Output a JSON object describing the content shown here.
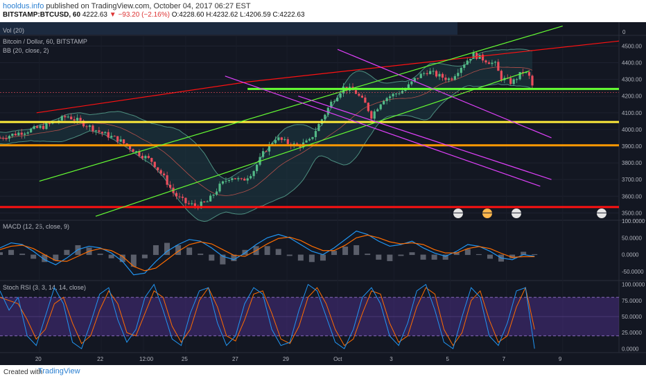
{
  "header": {
    "author": "hooldus.info",
    "published_text": "published on TradingView.com, October 04, 2017 06:27 EST",
    "symbol": "BITSTAMP:BTCUSD, 60",
    "last": "4222.63",
    "change": "▼ −93.20 (−2.16%)",
    "ohlc": "O:4228.60 H:4232.62 L:4206.59 C:4222.63"
  },
  "panes": {
    "vol_label": "Vol (20)",
    "vol_right": "0",
    "price_label": "Bitcoin / Dollar, 60, BITSTAMP",
    "bb_label": "BB (20, close, 2)",
    "macd_label": "MACD (12, 26, close, 9)",
    "stoch_label": "Stoch RSI (3, 3, 14, 14, close)"
  },
  "footer": {
    "created_with": "Created with",
    "brand": "TradingView"
  },
  "colors": {
    "background": "#131722",
    "up": "#53b987",
    "down": "#eb4d5c",
    "bb": "#4d8f80",
    "macd": "#2196f3",
    "signal": "#ff6d00",
    "stoch_k": "#2196f3",
    "stoch_d": "#ff6d00",
    "stoch_band": "#673ab7",
    "yellow": "#ffeb3b",
    "orange": "#ff9800",
    "red": "#ff1111",
    "bright_green": "#66ff33",
    "magenta": "#e040fb"
  },
  "chart_data": [
    {
      "type": "candlestick",
      "title": "Bitcoin / Dollar, 60, BITSTAMP",
      "x_ticks": [
        "20",
        "22",
        "12:00",
        "25",
        "27",
        "29",
        "Oct",
        "3",
        "5",
        "7",
        "9"
      ],
      "y_ticks": [
        "4500.00",
        "4400.00",
        "4300.00",
        "4200.00",
        "4100.00",
        "4000.00",
        "3900.00",
        "3800.00",
        "3700.00",
        "3600.00",
        "3500.00"
      ],
      "ylim": [
        3460,
        4560
      ],
      "price_path": [
        [
          0,
          3950
        ],
        [
          8,
          4020
        ],
        [
          12,
          4080
        ],
        [
          14,
          4050
        ],
        [
          18,
          3980
        ],
        [
          21,
          3940
        ],
        [
          24,
          3870
        ],
        [
          27,
          3810
        ],
        [
          29,
          3720
        ],
        [
          31,
          3610
        ],
        [
          33,
          3560
        ],
        [
          35,
          3540
        ],
        [
          37,
          3570
        ],
        [
          39,
          3660
        ],
        [
          41,
          3720
        ],
        [
          43,
          3690
        ],
        [
          45,
          3750
        ],
        [
          47,
          3870
        ],
        [
          49,
          3950
        ],
        [
          51,
          3920
        ],
        [
          53,
          3900
        ],
        [
          55,
          3930
        ],
        [
          57,
          4050
        ],
        [
          59,
          4170
        ],
        [
          61,
          4250
        ],
        [
          63,
          4230
        ],
        [
          65,
          4150
        ],
        [
          66,
          4080
        ],
        [
          68,
          4180
        ],
        [
          70,
          4210
        ],
        [
          72,
          4240
        ],
        [
          74,
          4310
        ],
        [
          76,
          4350
        ],
        [
          78,
          4320
        ],
        [
          80,
          4300
        ],
        [
          82,
          4380
        ],
        [
          84,
          4450
        ],
        [
          86,
          4420
        ],
        [
          88,
          4390
        ],
        [
          89,
          4310
        ],
        [
          91,
          4280
        ],
        [
          93,
          4350
        ],
        [
          94,
          4320
        ],
        [
          95,
          4222.63
        ]
      ],
      "last_price": "4222.63",
      "horizontal_levels": [
        {
          "price": 4243,
          "color": "bright_green"
        },
        {
          "price": 4045,
          "color": "yellow"
        },
        {
          "price": 3905,
          "color": "orange"
        },
        {
          "price": 3535,
          "color": "red"
        }
      ],
      "trend_lines": [
        {
          "from": [
            6.5,
            4100
          ],
          "to": [
            44,
            4285
          ],
          "color": "red"
        },
        {
          "from": [
            44,
            4285
          ],
          "to": [
            110,
            4530
          ],
          "color": "red"
        },
        {
          "from": [
            17,
            3480
          ],
          "to": [
            94,
            4350
          ],
          "color": "bright_green"
        },
        {
          "from": [
            7,
            3690
          ],
          "to": [
            100,
            4620
          ],
          "color": "bright_green"
        },
        {
          "from": [
            40,
            4320
          ],
          "to": [
            96,
            3660
          ],
          "color": "magenta"
        },
        {
          "from": [
            53,
            4200
          ],
          "to": [
            98,
            3700
          ],
          "color": "magenta"
        },
        {
          "from": [
            60,
            4480
          ],
          "to": [
            98,
            3950
          ],
          "color": "magenta"
        }
      ]
    },
    {
      "type": "line",
      "title": "MACD (12, 26, close, 9)",
      "y_ticks": [
        "100.0000",
        "50.0000",
        "0.0000",
        "-50.0000"
      ],
      "ylim": [
        -75,
        100
      ],
      "series": [
        {
          "values": [
            20,
            35,
            30,
            10,
            -15,
            -30,
            -10,
            15,
            25,
            20,
            5,
            -20,
            -60,
            -55,
            -20,
            10,
            30,
            45,
            40,
            20,
            -5,
            -15,
            5,
            30,
            50,
            60,
            50,
            30,
            10,
            0,
            20,
            45,
            70,
            60,
            40,
            25,
            30,
            40,
            20,
            5,
            -5,
            10,
            30,
            25,
            10,
            -10,
            -15,
            0,
            -5
          ]
        },
        {
          "values": [
            15,
            25,
            28,
            18,
            0,
            -18,
            -20,
            -5,
            10,
            18,
            12,
            -5,
            -35,
            -48,
            -40,
            -15,
            10,
            30,
            38,
            32,
            15,
            -2,
            -5,
            12,
            32,
            48,
            52,
            42,
            25,
            12,
            12,
            28,
            50,
            58,
            50,
            38,
            32,
            35,
            30,
            15,
            5,
            5,
            18,
            24,
            18,
            4,
            -8,
            -6,
            -6
          ]
        }
      ]
    },
    {
      "type": "line",
      "title": "Stoch RSI (3, 3, 14, 14, close)",
      "y_ticks": [
        "100.0000",
        "75.0000",
        "50.0000",
        "25.0000",
        "0.0000"
      ],
      "ylim": [
        -5,
        105
      ],
      "series": [
        {
          "values": [
            90,
            60,
            80,
            20,
            5,
            50,
            95,
            70,
            10,
            0,
            40,
            85,
            95,
            45,
            10,
            30,
            80,
            100,
            60,
            15,
            5,
            55,
            90,
            95,
            40,
            5,
            20,
            70,
            95,
            85,
            30,
            5,
            10,
            60,
            100,
            90,
            50,
            10,
            0,
            30,
            80,
            95,
            70,
            20,
            5,
            40,
            90,
            100,
            60,
            10,
            0,
            50,
            95,
            80,
            20,
            5,
            40,
            90,
            95,
            0
          ]
        },
        {
          "values": [
            80,
            75,
            70,
            45,
            15,
            30,
            70,
            80,
            40,
            8,
            20,
            60,
            90,
            70,
            25,
            20,
            55,
            90,
            80,
            35,
            10,
            30,
            75,
            95,
            65,
            20,
            12,
            45,
            85,
            90,
            55,
            15,
            8,
            35,
            80,
            95,
            70,
            30,
            5,
            15,
            55,
            90,
            85,
            40,
            10,
            20,
            65,
            95,
            85,
            30,
            5,
            25,
            75,
            90,
            45,
            10,
            20,
            65,
            95,
            30
          ]
        }
      ]
    },
    {
      "type": "bar",
      "title": "Vol (20)",
      "y_ticks": [
        "0"
      ]
    }
  ]
}
